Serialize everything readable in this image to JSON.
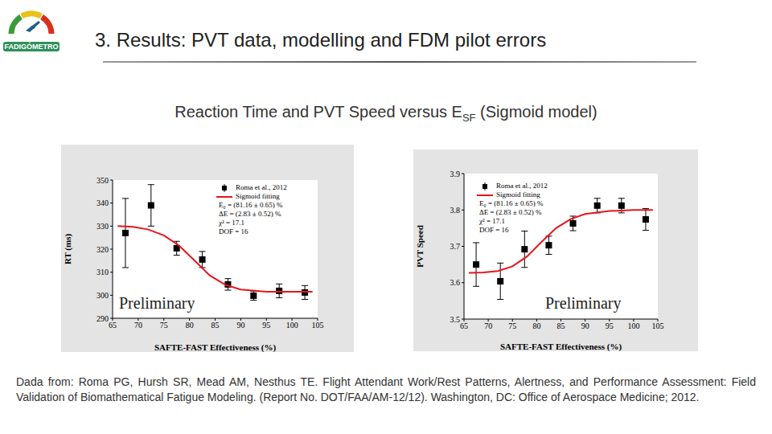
{
  "logo_text": "FADIGÓMETRO",
  "title": "3. Results: PVT data, modelling and FDM pilot errors",
  "subtitle": {
    "text": "Reaction Time and PVT Speed versus E",
    "subscript": "SF",
    "text_after": " (Sigmoid model)"
  },
  "footnote": "Dada from: Roma PG, Hursh SR, Mead AM, Nesthus TE. Flight Attendant Work/Rest Patterns, Alertness, and Performance Assessment: Field Validation of Biomathematical Fatigue Modeling. (Report No. DOT/FAA/AM-12/12). Washington, DC: Office of Aerospace Medicine; 2012.",
  "chart_data": [
    {
      "type": "scatter",
      "x_label": "SAFTE-FAST Effectiveness (%)",
      "y_label": "RT (ms)",
      "xlim": [
        65,
        105
      ],
      "xticks": [
        65,
        70,
        75,
        80,
        85,
        90,
        95,
        100,
        105
      ],
      "ylim": [
        290,
        350
      ],
      "yticks": [
        290,
        300,
        310,
        320,
        330,
        340,
        350
      ],
      "grid": false,
      "series": [
        {
          "name": "Roma et al., 2012",
          "type": "scatter",
          "marker": "square",
          "color": "#000000",
          "x": [
            67.5,
            72.5,
            77.5,
            82.5,
            87.5,
            92.5,
            97.5,
            102.5
          ],
          "values": [
            327,
            339,
            320.4,
            315.5,
            304.7,
            299.8,
            301.9,
            301.2
          ],
          "errors": [
            15,
            9,
            3,
            3.5,
            2.5,
            2,
            3,
            3
          ]
        },
        {
          "name": "Sigmoid fitting",
          "type": "line",
          "color": "#e8141b",
          "x": [
            66,
            69,
            72,
            75,
            78,
            81,
            84,
            87,
            90,
            95,
            100,
            104
          ],
          "values": [
            330,
            329.7,
            328.5,
            326,
            321.5,
            315,
            308.5,
            304.5,
            302.5,
            301.5,
            301.5,
            301.5
          ]
        }
      ],
      "annotations": [
        "E₀ = (81.16 ± 0.65) %",
        "ΔE = (2.83 ± 0.52) %",
        "χ² = 17.1",
        "DOF = 16"
      ],
      "watermark": "Preliminary"
    },
    {
      "type": "scatter",
      "x_label": "SAFTE-FAST Effectiveness (%)",
      "y_label": "PVT Speed",
      "xlim": [
        65,
        105
      ],
      "xticks": [
        65,
        70,
        75,
        80,
        85,
        90,
        95,
        100,
        105
      ],
      "ylim": [
        3.5,
        3.9
      ],
      "yticks": [
        3.5,
        3.6,
        3.7,
        3.8,
        3.9
      ],
      "grid": false,
      "series": [
        {
          "name": "Roma et al., 2012",
          "type": "scatter",
          "marker": "square",
          "color": "#000000",
          "x": [
            67.5,
            72.5,
            77.5,
            82.5,
            87.5,
            92.5,
            97.5,
            102.5
          ],
          "values": [
            3.65,
            3.604,
            3.692,
            3.703,
            3.763,
            3.812,
            3.812,
            3.774
          ],
          "errors": [
            0.06,
            0.05,
            0.05,
            0.025,
            0.02,
            0.02,
            0.02,
            0.03
          ]
        },
        {
          "name": "Sigmoid fitting",
          "type": "line",
          "color": "#e8141b",
          "x": [
            66,
            69,
            72,
            75,
            78,
            81,
            84,
            87,
            90,
            95,
            100,
            104
          ],
          "values": [
            3.627,
            3.628,
            3.632,
            3.645,
            3.672,
            3.712,
            3.75,
            3.775,
            3.789,
            3.797,
            3.8,
            3.8
          ]
        }
      ],
      "annotations": [
        "E₀ = (81.16 ± 0.65) %",
        "ΔE = (2.83 ± 0.52) %",
        "χ² = 17.1",
        "DOF = 16"
      ],
      "watermark": "Preliminary"
    }
  ]
}
